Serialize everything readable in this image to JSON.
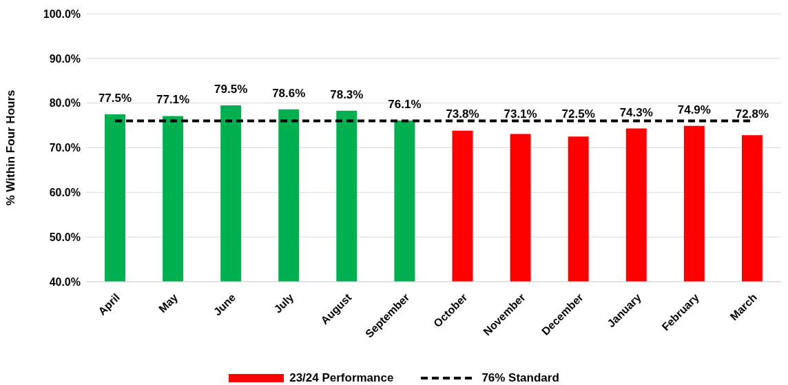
{
  "chart_data": {
    "type": "bar",
    "ylabel": "% Within Four Hours",
    "categories": [
      "April",
      "May",
      "June",
      "July",
      "August",
      "September",
      "October",
      "November",
      "December",
      "January",
      "February",
      "March"
    ],
    "series": [
      {
        "name": "23/24 Performance",
        "color": "#ff0000",
        "colors": [
          "#00b050",
          "#00b050",
          "#00b050",
          "#00b050",
          "#00b050",
          "#00b050",
          "#ff0000",
          "#ff0000",
          "#ff0000",
          "#ff0000",
          "#ff0000",
          "#ff0000"
        ],
        "values": [
          77.5,
          77.1,
          79.5,
          78.6,
          78.3,
          76.1,
          73.8,
          73.1,
          72.5,
          74.3,
          74.9,
          72.8
        ],
        "value_labels": [
          "77.5%",
          "77.1%",
          "79.5%",
          "78.6%",
          "78.3%",
          "76.1%",
          "73.8%",
          "73.1%",
          "72.5%",
          "74.3%",
          "74.9%",
          "72.8%"
        ]
      },
      {
        "name": "76% Standard",
        "type": "line",
        "color": "#000000",
        "line_style": "dashed",
        "marker": "none",
        "values": [
          76,
          76,
          76,
          76,
          76,
          76,
          76,
          76,
          76,
          76,
          76,
          76
        ]
      }
    ],
    "ylim": [
      40,
      100
    ],
    "yticks": [
      {
        "value": 40,
        "label": "40.0%"
      },
      {
        "value": 50,
        "label": "50.0%"
      },
      {
        "value": 60,
        "label": "60.0%"
      },
      {
        "value": 70,
        "label": "70.0%"
      },
      {
        "value": 80,
        "label": "80.0%"
      },
      {
        "value": 90,
        "label": "90.0%"
      },
      {
        "value": 100,
        "label": "100.0%"
      }
    ],
    "grid": "y",
    "legend": "bottom"
  }
}
